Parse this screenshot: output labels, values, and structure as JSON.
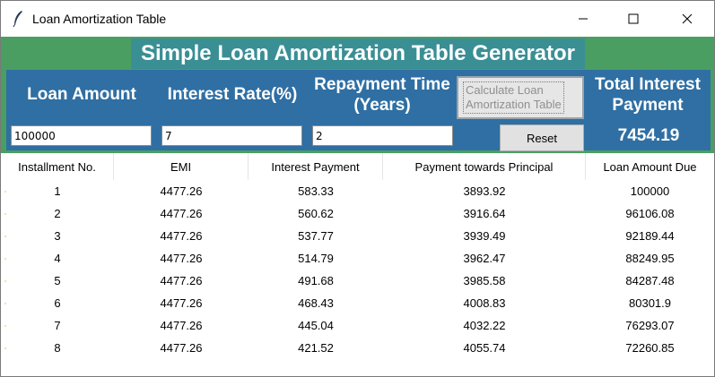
{
  "window": {
    "title": "Loan Amortization Table",
    "icon": "feather-icon"
  },
  "banner": "Simple Loan Amortization Table Generator",
  "form": {
    "loan_amount_label": "Loan Amount",
    "interest_rate_label": "Interest Rate(%)",
    "repayment_time_label_line1": "Repayment Time",
    "repayment_time_label_line2": "(Years)",
    "total_interest_label_line1": "Total Interest",
    "total_interest_label_line2": "Payment",
    "loan_amount_value": "100000",
    "interest_rate_value": "7",
    "repayment_time_value": "2",
    "calculate_label_line1": "Calculate Loan",
    "calculate_label_line2": "Amortization Table",
    "reset_label": "Reset",
    "total_interest_value": "7454.19"
  },
  "table": {
    "columns": [
      "Installment No.",
      "EMI",
      "Interest Payment",
      "Payment towards Principal",
      "Loan Amount Due"
    ],
    "rows": [
      [
        "1",
        "4477.26",
        "583.33",
        "3893.92",
        "100000"
      ],
      [
        "2",
        "4477.26",
        "560.62",
        "3916.64",
        "96106.08"
      ],
      [
        "3",
        "4477.26",
        "537.77",
        "3939.49",
        "92189.44"
      ],
      [
        "4",
        "4477.26",
        "514.79",
        "3962.47",
        "88249.95"
      ],
      [
        "5",
        "4477.26",
        "491.68",
        "3985.58",
        "84287.48"
      ],
      [
        "6",
        "4477.26",
        "468.43",
        "4008.83",
        "80301.9"
      ],
      [
        "7",
        "4477.26",
        "445.04",
        "4032.22",
        "76293.07"
      ],
      [
        "8",
        "4477.26",
        "421.52",
        "4055.74",
        "72260.85"
      ]
    ]
  },
  "colors": {
    "green_frame": "#4a9e62",
    "banner": "#3a8f94",
    "blue_panel": "#2f6fa3"
  }
}
